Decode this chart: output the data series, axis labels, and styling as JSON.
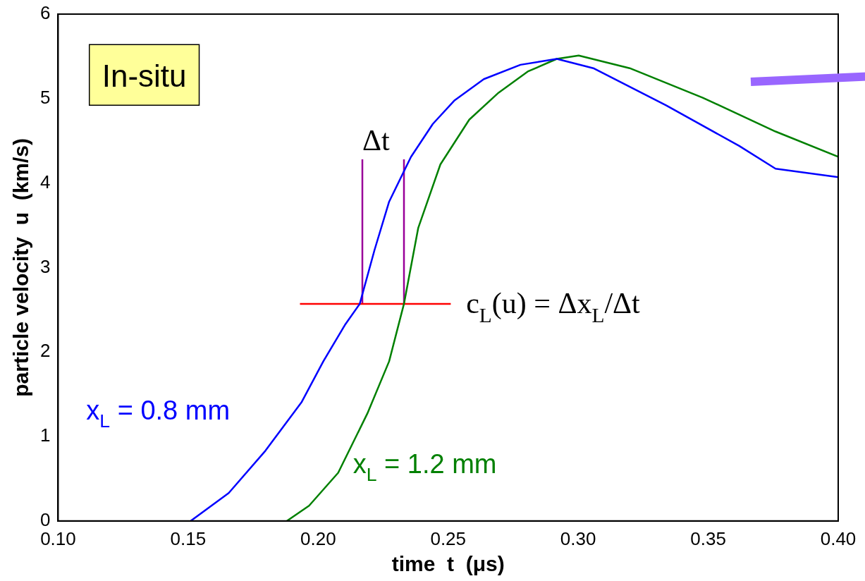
{
  "chart_data": {
    "type": "line",
    "xlabel": "time  t  (μs)",
    "ylabel": "particle velocity  u  (km/s)",
    "xlim": [
      0.1,
      0.4
    ],
    "xticks": [
      {
        "value": 0.1,
        "label": "0.10"
      },
      {
        "value": 0.15,
        "label": "0.15"
      },
      {
        "value": 0.2,
        "label": "0.20"
      },
      {
        "value": 0.25,
        "label": "0.25"
      },
      {
        "value": 0.3,
        "label": "0.30"
      },
      {
        "value": 0.35,
        "label": "0.35"
      },
      {
        "value": 0.4,
        "label": "0.40"
      }
    ],
    "ylim": [
      0,
      6
    ],
    "yticks": [
      0,
      1,
      2,
      3,
      4,
      5,
      6
    ],
    "grid": false,
    "legend": false,
    "series": [
      {
        "name": "x$_{L}$ = 0.8 mm",
        "color": "#0000ff",
        "x": [
          0.151,
          0.1656,
          0.1797,
          0.1937,
          0.202,
          0.2105,
          0.216,
          0.2217,
          0.2273,
          0.2357,
          0.2441,
          0.2525,
          0.2637,
          0.2778,
          0.2918,
          0.3058,
          0.3338,
          0.3619,
          0.3759,
          0.4
        ],
        "values": [
          0,
          0.33,
          0.83,
          1.41,
          1.89,
          2.33,
          2.57,
          3.21,
          3.78,
          4.31,
          4.7,
          4.98,
          5.23,
          5.4,
          5.47,
          5.36,
          4.92,
          4.44,
          4.17,
          4.07
        ]
      },
      {
        "name": "x$_{L}$ = 1.2 mm",
        "color": "#008000",
        "x": [
          0.188,
          0.1965,
          0.2077,
          0.2189,
          0.2273,
          0.233,
          0.2385,
          0.247,
          0.2581,
          0.2694,
          0.2806,
          0.2918,
          0.3002,
          0.3198,
          0.3479,
          0.3759,
          0.4
        ],
        "values": [
          0,
          0.18,
          0.57,
          1.27,
          1.89,
          2.57,
          3.47,
          4.22,
          4.75,
          5.07,
          5.32,
          5.47,
          5.51,
          5.36,
          5.01,
          4.61,
          4.31
        ]
      },
      {
        "color": "#ff0000",
        "x": [
          0.193,
          0.251
        ],
        "values": [
          2.57,
          2.57
        ]
      },
      {
        "color": "#990099",
        "x": [
          0.217,
          0.217
        ],
        "values": [
          2.57,
          4.28
        ]
      },
      {
        "color": "#990099",
        "x": [
          0.233,
          0.233
        ],
        "values": [
          2.57,
          4.28
        ]
      }
    ],
    "annotations": [
      "In-situ",
      "Δt",
      "c$_{L}$(u) = Δx$_{L}$/Δt"
    ]
  }
}
